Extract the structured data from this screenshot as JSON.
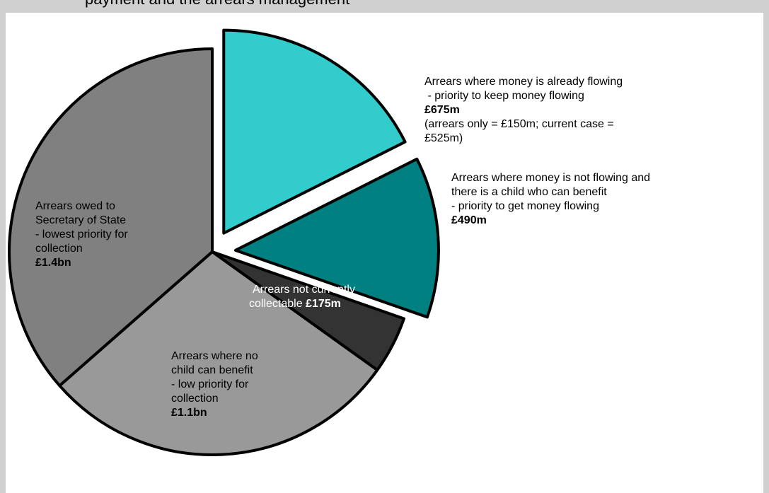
{
  "header": {
    "text": "payment and the arrears management"
  },
  "chart_data": {
    "type": "pie",
    "exploded": [
      "flowing",
      "not_flowing"
    ],
    "slices": [
      {
        "key": "flowing",
        "lines": [
          "Arrears where money is already flowing",
          " - priority to keep money flowing"
        ],
        "amount": "£675m",
        "note_lines": [
          "(arrears only = £150m; current case =",
          "£525m)"
        ],
        "value": 675,
        "color": "#33cccc"
      },
      {
        "key": "not_flowing",
        "lines": [
          "Arrears where money is not flowing and",
          "there is a child who can benefit",
          "- priority to get money flowing"
        ],
        "amount": "£490m",
        "value": 490,
        "color": "#008080"
      },
      {
        "key": "not_collectable",
        "lines": [
          "Arrears not currently",
          "collectable "
        ],
        "amount": "£175m",
        "value": 175,
        "color": "#333333"
      },
      {
        "key": "no_child",
        "lines": [
          "Arrears where no",
          "child can benefit",
          "- low priority for",
          "collection"
        ],
        "amount": "£1.1bn",
        "value": 1100,
        "color": "#999999"
      },
      {
        "key": "sos",
        "lines": [
          "Arrears owed to",
          "Secretary of State",
          "- lowest priority for",
          "collection"
        ],
        "amount": "£1.4bn",
        "value": 1400,
        "color": "#808080"
      }
    ]
  }
}
